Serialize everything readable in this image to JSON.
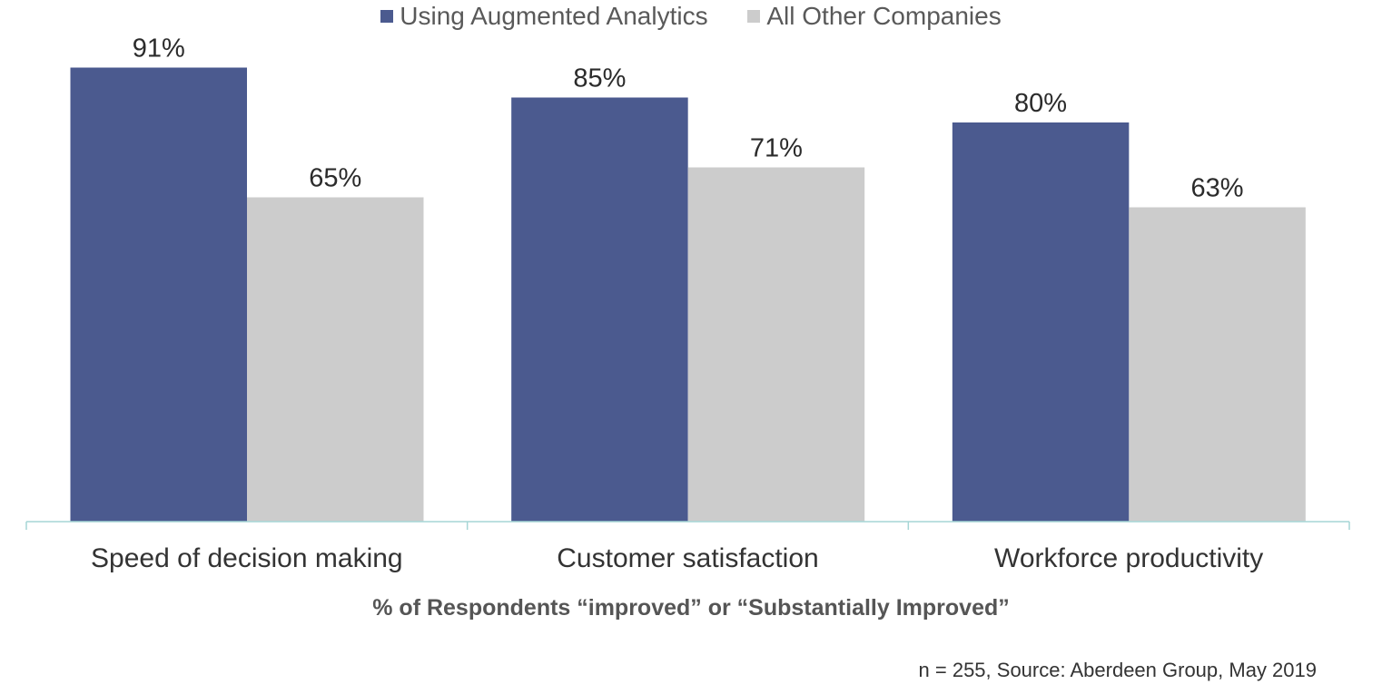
{
  "chart_data": {
    "type": "bar",
    "categories": [
      "Speed of decision making",
      "Customer satisfaction",
      "Workforce productivity"
    ],
    "series": [
      {
        "name": "Using Augmented Analytics",
        "values": [
          91,
          85,
          80
        ],
        "labels": [
          "91%",
          "85%",
          "80%"
        ],
        "color": "#4b5a8f"
      },
      {
        "name": "All Other Companies",
        "values": [
          65,
          71,
          63
        ],
        "labels": [
          "65%",
          "71%",
          "63%"
        ],
        "color": "#cccccc"
      }
    ],
    "title": "",
    "xlabel": "% of Respondents “improved” or “Substantially Improved”",
    "ylabel": "",
    "ylim": [
      0,
      100
    ],
    "grid": false,
    "legend_position": "top-center",
    "axis_color": "#a6d6d6",
    "note": "n = 255, Source: Aberdeen Group, May 2019"
  }
}
